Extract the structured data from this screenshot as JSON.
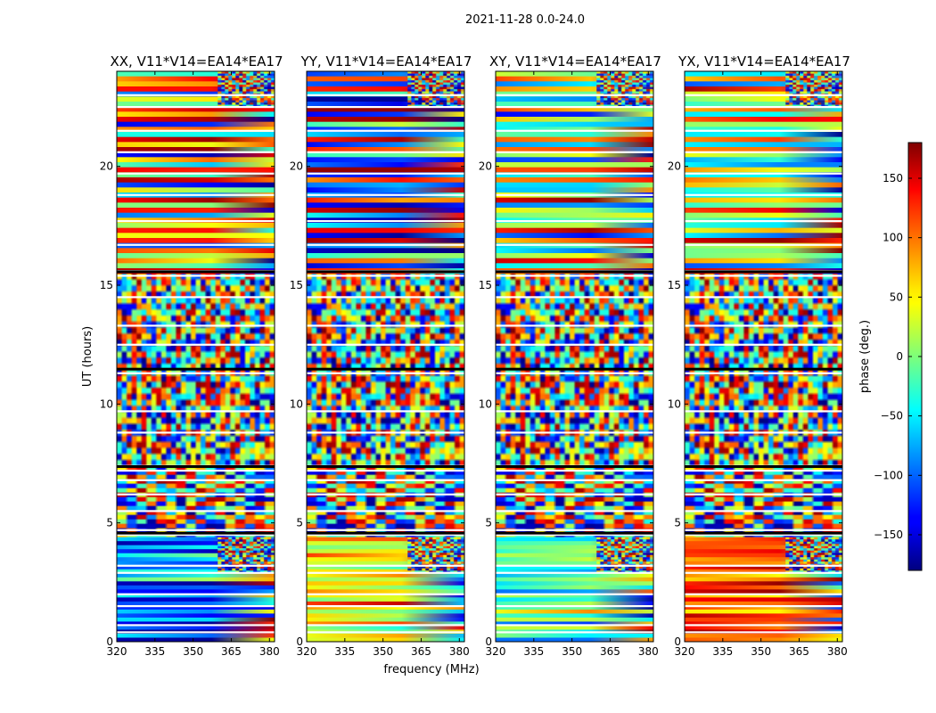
{
  "chart_data": {
    "type": "heatmap",
    "suptitle": "2021-11-28 0.0-24.0",
    "xlabel": "frequency (MHz)",
    "ylabel": "UT (hours)",
    "xlim": [
      320,
      382
    ],
    "ylim": [
      0,
      24
    ],
    "xticks": [
      320,
      335,
      350,
      365,
      380
    ],
    "yticks": [
      0,
      5,
      10,
      15,
      20
    ],
    "panels": [
      {
        "title": "XX, V11*V14=EA14*EA17"
      },
      {
        "title": "YY, V11*V14=EA14*EA17"
      },
      {
        "title": "XY, V11*V14=EA14*EA17"
      },
      {
        "title": "YX, V11*V14=EA14*EA17"
      }
    ],
    "colorbar": {
      "label": "phase (deg.)",
      "range": [
        -180,
        180
      ],
      "ticks": [
        150,
        100,
        50,
        0,
        -50,
        -100,
        -150
      ],
      "tick_labels": [
        "150",
        "100",
        "50",
        "0",
        "−50",
        "−100",
        "−150"
      ],
      "colormap": "jet"
    },
    "segments_ut": [
      {
        "from": 0.0,
        "to": 4.4,
        "state": "coherent"
      },
      {
        "from": 4.4,
        "to": 7.4,
        "state": "mixed"
      },
      {
        "from": 7.4,
        "to": 15.5,
        "state": "noise"
      },
      {
        "from": 15.5,
        "to": 24.0,
        "state": "coherent"
      }
    ]
  }
}
